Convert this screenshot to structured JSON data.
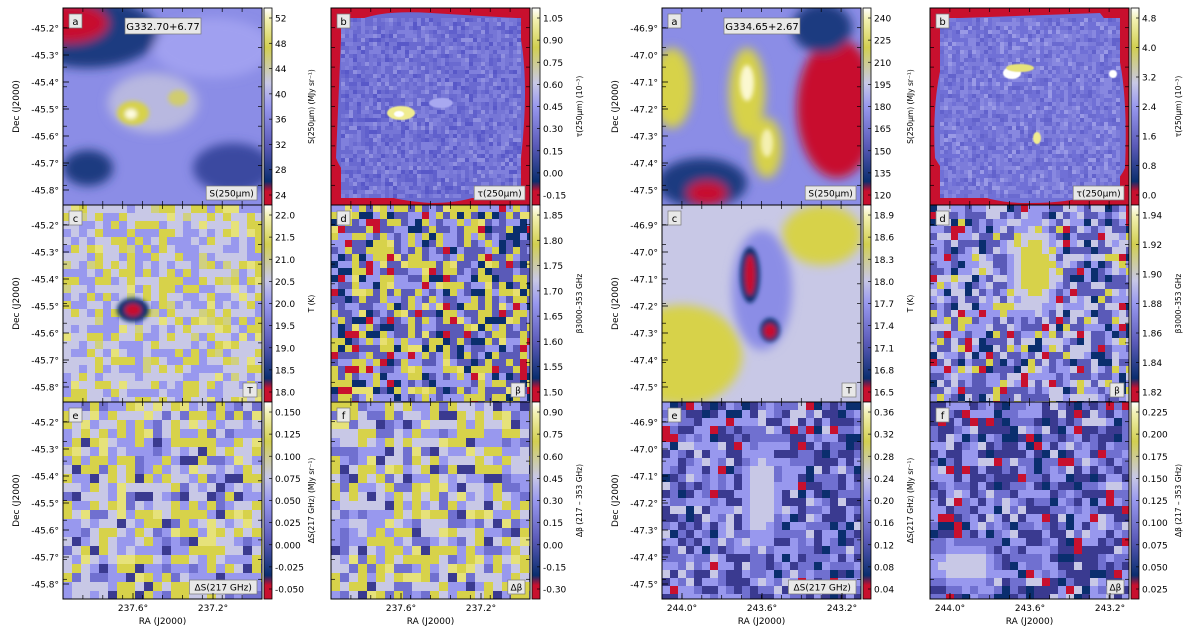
{
  "figure": {
    "groups": [
      {
        "field_name": "G332.70+6.77",
        "dec_ticks": [
          "-45.2°",
          "-45.3°",
          "-45.4°",
          "-45.5°",
          "-45.6°",
          "-45.7°",
          "-45.8°"
        ],
        "ra_ticks": [
          "237.6°",
          "237.2°"
        ],
        "dec_label": "Dec (J2000)",
        "ra_label": "RA (J2000)",
        "panels": [
          {
            "letter": "a",
            "tag": "S(250μm)",
            "colorbar_label": "S(250μm) (MJy sr⁻¹)",
            "colorbar_ticks": [
              "52",
              "48",
              "44",
              "40",
              "36",
              "32",
              "28",
              "24"
            ],
            "colormap": "planck"
          },
          {
            "letter": "b",
            "tag": "τ(250μm)",
            "colorbar_label": "τ(250μm) (10⁻³)",
            "colorbar_ticks": [
              "1.05",
              "0.90",
              "0.75",
              "0.60",
              "0.45",
              "0.30",
              "0.15",
              "0.00",
              "-0.15"
            ],
            "colormap": "planck"
          },
          {
            "letter": "c",
            "tag": "T",
            "colorbar_label": "T (K)",
            "colorbar_ticks": [
              "22.0",
              "21.5",
              "21.0",
              "20.5",
              "20.0",
              "19.5",
              "19.0",
              "18.5",
              "18.0"
            ],
            "colormap": "planck"
          },
          {
            "letter": "d",
            "tag": "β",
            "colorbar_label": "β3000–353 GHz",
            "colorbar_ticks": [
              "1.85",
              "1.80",
              "1.75",
              "1.70",
              "1.65",
              "1.60",
              "1.55",
              "1.50"
            ],
            "colormap": "planck"
          },
          {
            "letter": "e",
            "tag": "ΔS(217 GHz)",
            "colorbar_label": "ΔS(217 GHz) (MJy sr⁻¹)",
            "colorbar_ticks": [
              "0.150",
              "0.125",
              "0.100",
              "0.075",
              "0.050",
              "0.025",
              "0.000",
              "-0.025",
              "-0.050"
            ],
            "colormap": "planck"
          },
          {
            "letter": "f",
            "tag": "Δβ",
            "colorbar_label": "Δβ (217 – 353 GHz)",
            "colorbar_ticks": [
              "0.90",
              "0.75",
              "0.60",
              "0.45",
              "0.30",
              "0.15",
              "0.00",
              "-0.15",
              "-0.30"
            ],
            "colormap": "planck"
          }
        ]
      },
      {
        "field_name": "G334.65+2.67",
        "dec_ticks": [
          "-46.9°",
          "-47.0°",
          "-47.1°",
          "-47.2°",
          "-47.3°",
          "-47.4°",
          "-47.5°"
        ],
        "ra_ticks": [
          "244.0°",
          "243.6°",
          "243.2°"
        ],
        "dec_label": "Dec (J2000)",
        "ra_label": "RA (J2000)",
        "panels": [
          {
            "letter": "a",
            "tag": "S(250μm)",
            "colorbar_label": "S(250μm) (MJy sr⁻¹)",
            "colorbar_ticks": [
              "240",
              "225",
              "210",
              "195",
              "180",
              "165",
              "150",
              "135",
              "120"
            ],
            "colormap": "planck"
          },
          {
            "letter": "b",
            "tag": "τ(250μm)",
            "colorbar_label": "τ(250μm) (10⁻³)",
            "colorbar_ticks": [
              "4.8",
              "4.0",
              "3.2",
              "2.4",
              "1.6",
              "0.8",
              "0.0"
            ],
            "colormap": "planck"
          },
          {
            "letter": "c",
            "tag": "T",
            "colorbar_label": "T (K)",
            "colorbar_ticks": [
              "18.9",
              "18.6",
              "18.3",
              "18.0",
              "17.7",
              "17.4",
              "17.1",
              "16.8",
              "16.5"
            ],
            "colormap": "planck"
          },
          {
            "letter": "d",
            "tag": "β",
            "colorbar_label": "β3000–353 GHz",
            "colorbar_ticks": [
              "1.94",
              "1.92",
              "1.90",
              "1.88",
              "1.86",
              "1.84",
              "1.82"
            ],
            "colormap": "planck"
          },
          {
            "letter": "e",
            "tag": "ΔS(217 GHz)",
            "colorbar_label": "ΔS(217 GHz) (MJy sr⁻¹)",
            "colorbar_ticks": [
              "0.36",
              "0.32",
              "0.28",
              "0.24",
              "0.20",
              "0.16",
              "0.12",
              "0.08",
              "0.04"
            ],
            "colormap": "planck"
          },
          {
            "letter": "f",
            "tag": "Δβ",
            "colorbar_label": "Δβ (217 – 353 GHz)",
            "colorbar_ticks": [
              "0.225",
              "0.200",
              "0.175",
              "0.150",
              "0.125",
              "0.100",
              "0.075",
              "0.050",
              "0.025"
            ],
            "colormap": "planck"
          }
        ]
      }
    ],
    "colors": {
      "planck_low": "#c8102e",
      "planck_dark": "#0a2e6e",
      "planck_mid": "#8c8cf0",
      "planck_light": "#c8c8e8",
      "planck_high": "#d7d24a",
      "planck_top": "#fffef0"
    }
  }
}
